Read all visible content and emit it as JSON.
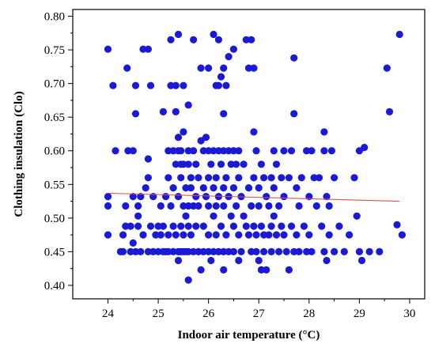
{
  "chart_data": {
    "type": "scatter",
    "title": "",
    "xlabel": "Indoor air temperature (°C)",
    "ylabel": "Clothing insulation (Clo)",
    "xlim": [
      23.3,
      30.3
    ],
    "ylim": [
      0.38,
      0.81
    ],
    "x_ticks": [
      24,
      25,
      26,
      27,
      28,
      29,
      30
    ],
    "x_tick_labels": [
      "24",
      "25",
      "26",
      "27",
      "28",
      "29",
      "30"
    ],
    "y_ticks": [
      0.4,
      0.45,
      0.5,
      0.55,
      0.6,
      0.65,
      0.7,
      0.75,
      0.8
    ],
    "y_tick_labels": [
      "0.40",
      "0.45",
      "0.50",
      "0.55",
      "0.60",
      "0.65",
      "0.70",
      "0.75",
      "0.80"
    ],
    "grid": false,
    "legend": false,
    "colors": {
      "points": "#1a1ad6",
      "trendline": "#d9534f",
      "axes": "#000000"
    },
    "series": [
      {
        "type": "scatter",
        "points": [
          [
            24.0,
            0.751
          ],
          [
            24.0,
            0.532
          ],
          [
            24.0,
            0.518
          ],
          [
            24.0,
            0.475
          ],
          [
            24.1,
            0.697
          ],
          [
            24.15,
            0.6
          ],
          [
            24.25,
            0.45
          ],
          [
            24.3,
            0.45
          ],
          [
            24.3,
            0.475
          ],
          [
            24.35,
            0.488
          ],
          [
            24.35,
            0.518
          ],
          [
            24.38,
            0.723
          ],
          [
            24.4,
            0.6
          ],
          [
            24.45,
            0.45
          ],
          [
            24.45,
            0.488
          ],
          [
            24.5,
            0.463
          ],
          [
            24.5,
            0.6
          ],
          [
            24.5,
            0.532
          ],
          [
            24.55,
            0.655
          ],
          [
            24.55,
            0.45
          ],
          [
            24.55,
            0.697
          ],
          [
            24.6,
            0.518
          ],
          [
            24.6,
            0.503
          ],
          [
            24.6,
            0.488
          ],
          [
            24.65,
            0.532
          ],
          [
            24.65,
            0.45
          ],
          [
            24.7,
            0.751
          ],
          [
            24.7,
            0.475
          ],
          [
            24.75,
            0.545
          ],
          [
            24.8,
            0.751
          ],
          [
            24.8,
            0.588
          ],
          [
            24.8,
            0.56
          ],
          [
            24.8,
            0.45
          ],
          [
            24.85,
            0.488
          ],
          [
            24.85,
            0.697
          ],
          [
            24.9,
            0.532
          ],
          [
            24.9,
            0.45
          ],
          [
            24.95,
            0.475
          ],
          [
            25.0,
            0.488
          ],
          [
            25.0,
            0.45
          ],
          [
            25.05,
            0.518
          ],
          [
            25.05,
            0.475
          ],
          [
            25.1,
            0.658
          ],
          [
            25.1,
            0.45
          ],
          [
            25.1,
            0.488
          ],
          [
            25.15,
            0.532
          ],
          [
            25.15,
            0.45
          ],
          [
            25.2,
            0.56
          ],
          [
            25.2,
            0.6
          ],
          [
            25.2,
            0.475
          ],
          [
            25.2,
            0.45
          ],
          [
            25.25,
            0.765
          ],
          [
            25.25,
            0.697
          ],
          [
            25.25,
            0.518
          ],
          [
            25.3,
            0.6
          ],
          [
            25.3,
            0.545
          ],
          [
            25.3,
            0.488
          ],
          [
            25.3,
            0.45
          ],
          [
            25.35,
            0.697
          ],
          [
            25.35,
            0.658
          ],
          [
            25.35,
            0.58
          ],
          [
            25.35,
            0.475
          ],
          [
            25.4,
            0.773
          ],
          [
            25.4,
            0.62
          ],
          [
            25.4,
            0.6
          ],
          [
            25.4,
            0.532
          ],
          [
            25.4,
            0.45
          ],
          [
            25.4,
            0.437
          ],
          [
            25.45,
            0.6
          ],
          [
            25.45,
            0.58
          ],
          [
            25.45,
            0.56
          ],
          [
            25.45,
            0.488
          ],
          [
            25.45,
            0.45
          ],
          [
            25.5,
            0.697
          ],
          [
            25.5,
            0.628
          ],
          [
            25.5,
            0.58
          ],
          [
            25.5,
            0.518
          ],
          [
            25.5,
            0.475
          ],
          [
            25.5,
            0.45
          ],
          [
            25.55,
            0.545
          ],
          [
            25.55,
            0.503
          ],
          [
            25.55,
            0.45
          ],
          [
            25.6,
            0.668
          ],
          [
            25.6,
            0.6
          ],
          [
            25.6,
            0.58
          ],
          [
            25.6,
            0.518
          ],
          [
            25.6,
            0.488
          ],
          [
            25.6,
            0.45
          ],
          [
            25.6,
            0.408
          ],
          [
            25.65,
            0.56
          ],
          [
            25.65,
            0.545
          ],
          [
            25.65,
            0.475
          ],
          [
            25.7,
            0.765
          ],
          [
            25.7,
            0.6
          ],
          [
            25.7,
            0.518
          ],
          [
            25.7,
            0.45
          ],
          [
            25.75,
            0.58
          ],
          [
            25.75,
            0.532
          ],
          [
            25.75,
            0.488
          ],
          [
            25.8,
            0.56
          ],
          [
            25.8,
            0.518
          ],
          [
            25.8,
            0.45
          ],
          [
            25.85,
            0.723
          ],
          [
            25.85,
            0.615
          ],
          [
            25.85,
            0.423
          ],
          [
            25.9,
            0.6
          ],
          [
            25.9,
            0.545
          ],
          [
            25.9,
            0.488
          ],
          [
            25.9,
            0.45
          ],
          [
            25.95,
            0.62
          ],
          [
            25.95,
            0.532
          ],
          [
            26.0,
            0.723
          ],
          [
            26.0,
            0.6
          ],
          [
            26.0,
            0.56
          ],
          [
            26.0,
            0.518
          ],
          [
            26.0,
            0.475
          ],
          [
            26.0,
            0.45
          ],
          [
            26.05,
            0.58
          ],
          [
            26.05,
            0.437
          ],
          [
            26.1,
            0.773
          ],
          [
            26.1,
            0.6
          ],
          [
            26.1,
            0.545
          ],
          [
            26.1,
            0.503
          ],
          [
            26.1,
            0.45
          ],
          [
            26.15,
            0.697
          ],
          [
            26.15,
            0.56
          ],
          [
            26.15,
            0.518
          ],
          [
            26.15,
            0.475
          ],
          [
            26.2,
            0.765
          ],
          [
            26.2,
            0.697
          ],
          [
            26.2,
            0.6
          ],
          [
            26.2,
            0.532
          ],
          [
            26.2,
            0.45
          ],
          [
            26.25,
            0.71
          ],
          [
            26.25,
            0.58
          ],
          [
            26.25,
            0.488
          ],
          [
            26.3,
            0.723
          ],
          [
            26.3,
            0.655
          ],
          [
            26.3,
            0.6
          ],
          [
            26.3,
            0.545
          ],
          [
            26.3,
            0.518
          ],
          [
            26.3,
            0.45
          ],
          [
            26.3,
            0.423
          ],
          [
            26.35,
            0.697
          ],
          [
            26.35,
            0.56
          ],
          [
            26.35,
            0.475
          ],
          [
            26.4,
            0.74
          ],
          [
            26.4,
            0.6
          ],
          [
            26.4,
            0.532
          ],
          [
            26.4,
            0.45
          ],
          [
            26.45,
            0.58
          ],
          [
            26.45,
            0.503
          ],
          [
            26.5,
            0.751
          ],
          [
            26.5,
            0.6
          ],
          [
            26.5,
            0.545
          ],
          [
            26.5,
            0.488
          ],
          [
            26.5,
            0.45
          ],
          [
            26.55,
            0.58
          ],
          [
            26.55,
            0.518
          ],
          [
            26.6,
            0.6
          ],
          [
            26.6,
            0.56
          ],
          [
            26.6,
            0.475
          ],
          [
            26.6,
            0.437
          ],
          [
            26.65,
            0.532
          ],
          [
            26.65,
            0.45
          ],
          [
            26.7,
            0.58
          ],
          [
            26.7,
            0.503
          ],
          [
            26.75,
            0.765
          ],
          [
            26.75,
            0.488
          ],
          [
            26.8,
            0.723
          ],
          [
            26.8,
            0.545
          ],
          [
            26.8,
            0.475
          ],
          [
            26.85,
            0.765
          ],
          [
            26.85,
            0.518
          ],
          [
            26.85,
            0.45
          ],
          [
            26.9,
            0.723
          ],
          [
            26.9,
            0.628
          ],
          [
            26.9,
            0.56
          ],
          [
            26.9,
            0.488
          ],
          [
            26.95,
            0.6
          ],
          [
            26.95,
            0.475
          ],
          [
            26.95,
            0.45
          ],
          [
            27.0,
            0.545
          ],
          [
            27.0,
            0.518
          ],
          [
            27.0,
            0.437
          ],
          [
            27.05,
            0.58
          ],
          [
            27.05,
            0.488
          ],
          [
            27.05,
            0.423
          ],
          [
            27.1,
            0.56
          ],
          [
            27.1,
            0.475
          ],
          [
            27.1,
            0.45
          ],
          [
            27.15,
            0.532
          ],
          [
            27.15,
            0.423
          ],
          [
            27.2,
            0.518
          ],
          [
            27.2,
            0.475
          ],
          [
            27.25,
            0.56
          ],
          [
            27.25,
            0.488
          ],
          [
            27.25,
            0.45
          ],
          [
            27.3,
            0.6
          ],
          [
            27.3,
            0.545
          ],
          [
            27.3,
            0.503
          ],
          [
            27.35,
            0.58
          ],
          [
            27.35,
            0.475
          ],
          [
            27.4,
            0.518
          ],
          [
            27.4,
            0.45
          ],
          [
            27.45,
            0.56
          ],
          [
            27.45,
            0.488
          ],
          [
            27.5,
            0.6
          ],
          [
            27.5,
            0.532
          ],
          [
            27.5,
            0.475
          ],
          [
            27.55,
            0.45
          ],
          [
            27.6,
            0.56
          ],
          [
            27.6,
            0.423
          ],
          [
            27.65,
            0.6
          ],
          [
            27.65,
            0.488
          ],
          [
            27.7,
            0.738
          ],
          [
            27.7,
            0.655
          ],
          [
            27.7,
            0.45
          ],
          [
            27.75,
            0.545
          ],
          [
            27.75,
            0.475
          ],
          [
            27.8,
            0.518
          ],
          [
            27.8,
            0.45
          ],
          [
            27.85,
            0.56
          ],
          [
            27.9,
            0.488
          ],
          [
            27.95,
            0.6
          ],
          [
            27.95,
            0.45
          ],
          [
            28.0,
            0.532
          ],
          [
            28.0,
            0.475
          ],
          [
            28.05,
            0.6
          ],
          [
            28.05,
            0.45
          ],
          [
            28.1,
            0.56
          ],
          [
            28.15,
            0.518
          ],
          [
            28.2,
            0.56
          ],
          [
            28.25,
            0.488
          ],
          [
            28.3,
            0.628
          ],
          [
            28.3,
            0.6
          ],
          [
            28.3,
            0.45
          ],
          [
            28.35,
            0.532
          ],
          [
            28.35,
            0.437
          ],
          [
            28.4,
            0.518
          ],
          [
            28.4,
            0.475
          ],
          [
            28.45,
            0.6
          ],
          [
            28.5,
            0.56
          ],
          [
            28.5,
            0.45
          ],
          [
            28.6,
            0.488
          ],
          [
            28.7,
            0.45
          ],
          [
            28.8,
            0.475
          ],
          [
            28.9,
            0.56
          ],
          [
            28.95,
            0.503
          ],
          [
            29.0,
            0.6
          ],
          [
            29.0,
            0.45
          ],
          [
            29.05,
            0.437
          ],
          [
            29.1,
            0.605
          ],
          [
            29.2,
            0.45
          ],
          [
            29.4,
            0.45
          ],
          [
            29.55,
            0.723
          ],
          [
            29.6,
            0.658
          ],
          [
            29.75,
            0.49
          ],
          [
            29.8,
            0.773
          ],
          [
            29.85,
            0.475
          ]
        ]
      },
      {
        "type": "trendline",
        "points": [
          [
            24.0,
            0.537
          ],
          [
            29.8,
            0.525
          ]
        ]
      }
    ]
  }
}
